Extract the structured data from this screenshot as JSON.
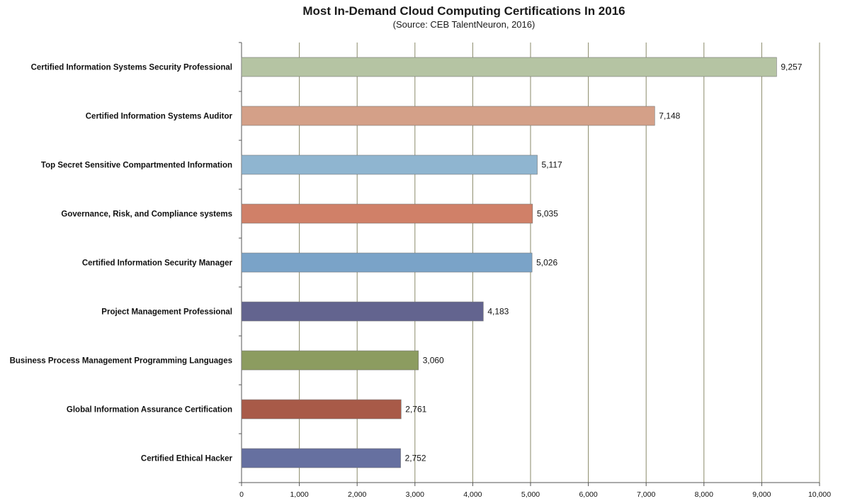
{
  "chart_data": {
    "type": "bar",
    "orientation": "horizontal",
    "title": "Most In-Demand Cloud Computing Certifications In 2016",
    "subtitle": "(Source:  CEB TalentNeuron,  2016)",
    "categories": [
      "Certified Information Systems Security Professional",
      "Certified Information Systems Auditor",
      "Top Secret Sensitive Compartmented Information",
      "Governance, Risk, and Compliance systems",
      "Certified Information Security Manager",
      "Project Management Professional",
      "Business Process Management Programming Languages",
      "Global Information Assurance Certification",
      "Certified Ethical Hacker"
    ],
    "values": [
      9257,
      7148,
      5117,
      5035,
      5026,
      4183,
      3060,
      2761,
      2752
    ],
    "value_labels": [
      "9,257",
      "7,148",
      "5,117",
      "5,035",
      "5,026",
      "4,183",
      "3,060",
      "2,761",
      "2,752"
    ],
    "colors": [
      "#b5c4a3",
      "#d4a088",
      "#8fb5d0",
      "#d08068",
      "#7aa3c8",
      "#63648f",
      "#8c9c60",
      "#a85a48",
      "#6670a0"
    ],
    "xlim": [
      0,
      10000
    ],
    "xticks": [
      "0",
      "1,000",
      "2,000",
      "3,000",
      "4,000",
      "5,000",
      "6,000",
      "7,000",
      "8,000",
      "9,000",
      "10,000"
    ],
    "xlabel": "",
    "ylabel": "",
    "grid": "vertical",
    "legend": "none"
  }
}
